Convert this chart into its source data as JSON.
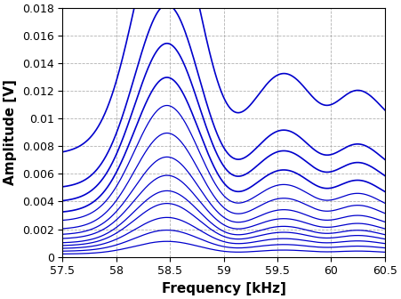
{
  "title": "",
  "xlabel": "Frequency [kHz]",
  "ylabel": "Amplitude [V]",
  "xlim": [
    57.5,
    60.5
  ],
  "ylim": [
    0,
    0.018
  ],
  "xticks": [
    57.5,
    58.0,
    58.5,
    59.0,
    59.5,
    60.0,
    60.5
  ],
  "yticks": [
    0,
    0.002,
    0.004,
    0.006,
    0.008,
    0.01,
    0.012,
    0.014,
    0.016,
    0.018
  ],
  "line_color": "#0000CC",
  "background_color": "#ffffff",
  "grid_color": "#aaaaaa",
  "num_curves": 13,
  "curve_scales": [
    0.0009,
    0.0015,
    0.0022,
    0.003,
    0.0037,
    0.0045,
    0.0055,
    0.0068,
    0.0082,
    0.0096,
    0.0112,
    0.013,
    0.017
  ],
  "left_vals": [
    0.0002,
    0.0004,
    0.0006,
    0.0008,
    0.001,
    0.0013,
    0.0016,
    0.002,
    0.0026,
    0.0032,
    0.004,
    0.005,
    0.0075
  ],
  "right_vals": [
    0.00025,
    0.0005,
    0.00075,
    0.001,
    0.00125,
    0.0016,
    0.002,
    0.0025,
    0.0031,
    0.0038,
    0.0048,
    0.0058,
    0.009
  ],
  "figsize": [
    4.51,
    3.36
  ],
  "dpi": 100
}
